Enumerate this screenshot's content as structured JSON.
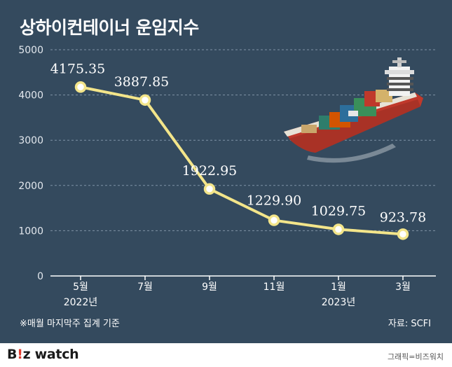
{
  "title": "상하이컨테이너 운임지수",
  "note": "※매월 마지막주 집계 기준",
  "source": "자료: SCFI",
  "footer": {
    "logo_b": "B",
    "logo_mark": "!",
    "logo_z": "z",
    "logo_watch": " watch",
    "credit": "그래픽=비즈워치"
  },
  "colors": {
    "background": "#344a5e",
    "line": "#f3e58a",
    "grid": "#7f93a6"
  },
  "chart_data": {
    "type": "line",
    "title": "상하이컨테이너 운임지수",
    "categories": [
      "5월",
      "7월",
      "9월",
      "11월",
      "1월",
      "3월"
    ],
    "year_labels": [
      "2022년",
      "",
      "",
      "",
      "2023년",
      ""
    ],
    "values": [
      4175.35,
      3887.85,
      1922.95,
      1229.9,
      1029.75,
      923.78
    ],
    "data_labels": [
      "4175.35",
      "3887.85",
      "1922.95",
      "1229.90",
      "1029.75",
      "923.78"
    ],
    "ylim": [
      0,
      5000
    ],
    "yticks": [
      0,
      1000,
      2000,
      3000,
      4000,
      5000
    ],
    "grid": true
  }
}
